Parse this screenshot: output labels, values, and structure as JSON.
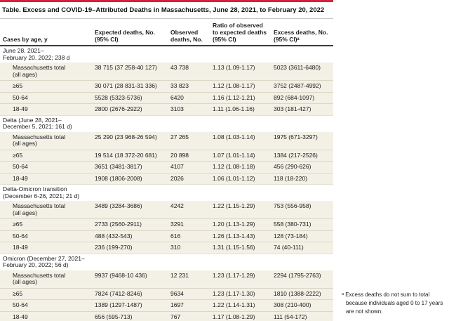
{
  "colors": {
    "accent_bar": "#d8203a",
    "row_band": "#f3f0e6",
    "row_divider": "#dbd6c6",
    "heavy_rule": "#3c3c3c"
  },
  "table": {
    "title": "Table. Excess and COVID-19–Attributed Deaths in Massachusetts, June 28, 2021, to February 20, 2022",
    "columns": [
      "Cases by age, y",
      "Expected deaths, No.\n(95% CI)",
      "Observed\ndeaths, No.",
      "Ratio of observed\nto expected deaths\n(95% CI)",
      "Excess deaths, No.\n(95% CI)ᵃ"
    ],
    "sections": [
      {
        "label": "June 28, 2021–\nFebruary 20, 2022; 238 d",
        "rows": [
          {
            "cells": [
              "Massachusetts total\n(all ages)",
              "38 715 (37 258-40 127)",
              "43 738",
              "1.13 (1.09-1.17)",
              "5023 (3611-6480)"
            ]
          },
          {
            "cells": [
              "≥65",
              "30 071 (28 831-31 336)",
              "33 823",
              "1.12 (1.08-1.17)",
              "3752 (2487-4992)"
            ]
          },
          {
            "cells": [
              "50-64",
              "5528 (5323-5736)",
              "6420",
              "1.16 (1.12-1.21)",
              "892 (684-1097)"
            ]
          },
          {
            "cells": [
              "18-49",
              "2800 (2676-2922)",
              "3103",
              "1.11 (1.06-1.16)",
              "303 (181-427)"
            ]
          }
        ]
      },
      {
        "label": "Delta (June 28, 2021–\nDecember 5, 2021; 161 d)",
        "rows": [
          {
            "cells": [
              "Massachusetts total\n(all ages)",
              "25 290 (23 968-26 594)",
              "27 265",
              "1.08 (1.03-1.14)",
              "1975 (671-3297)"
            ]
          },
          {
            "cells": [
              "≥65",
              "19 514 (18 372-20 681)",
              "20 898",
              "1.07 (1.01-1.14)",
              "1384 (217-2526)"
            ]
          },
          {
            "cells": [
              "50-64",
              "3651 (3481-3817)",
              "4107",
              "1.12 (1.08-1.18)",
              "456 (290-626)"
            ]
          },
          {
            "cells": [
              "18-49",
              "1908 (1806-2008)",
              "2026",
              "1.06 (1.01-1.12)",
              "118 (18-220)"
            ]
          }
        ]
      },
      {
        "label": "Delta-Omicron transition\n(December 6-26, 2021; 21 d)",
        "rows": [
          {
            "cells": [
              "Massachusetts total\n(all ages)",
              "3489 (3284-3686)",
              "4242",
              "1.22 (1.15-1.29)",
              "753 (556-958)"
            ]
          },
          {
            "cells": [
              "≥65",
              "2733 (2560-2911)",
              "3291",
              "1.20 (1.13-1.29)",
              "558 (380-731)"
            ]
          },
          {
            "cells": [
              "50-64",
              "488 (432-543)",
              "616",
              "1.26 (1.13-1.43)",
              "128 (73-184)"
            ]
          },
          {
            "cells": [
              "18-49",
              "236 (199-270)",
              "310",
              "1.31 (1.15-1.56)",
              "74 (40-111)"
            ]
          }
        ]
      },
      {
        "label": "Omicron (December 27, 2021–\nFebruary 20, 2022; 56 d)",
        "rows": [
          {
            "cells": [
              "Massachusetts total\n(all ages)",
              "9937 (9468-10 436)",
              "12 231",
              "1.23 (1.17-1.29)",
              "2294 (1795-2763)"
            ]
          },
          {
            "cells": [
              "≥65",
              "7824 (7412-8246)",
              "9634",
              "1.23 (1.17-1.30)",
              "1810 (1388-2222)"
            ]
          },
          {
            "cells": [
              "50-64",
              "1389 (1297-1487)",
              "1697",
              "1.22 (1.14-1.31)",
              "308 (210-400)"
            ]
          },
          {
            "cells": [
              "18-49",
              "656 (595-713)",
              "767",
              "1.17 (1.08-1.29)",
              "111 (54-172)"
            ]
          }
        ]
      }
    ],
    "footnote": "ᵃ Excess deaths do not sum to total because individuals aged 0 to 17 years are not shown."
  }
}
